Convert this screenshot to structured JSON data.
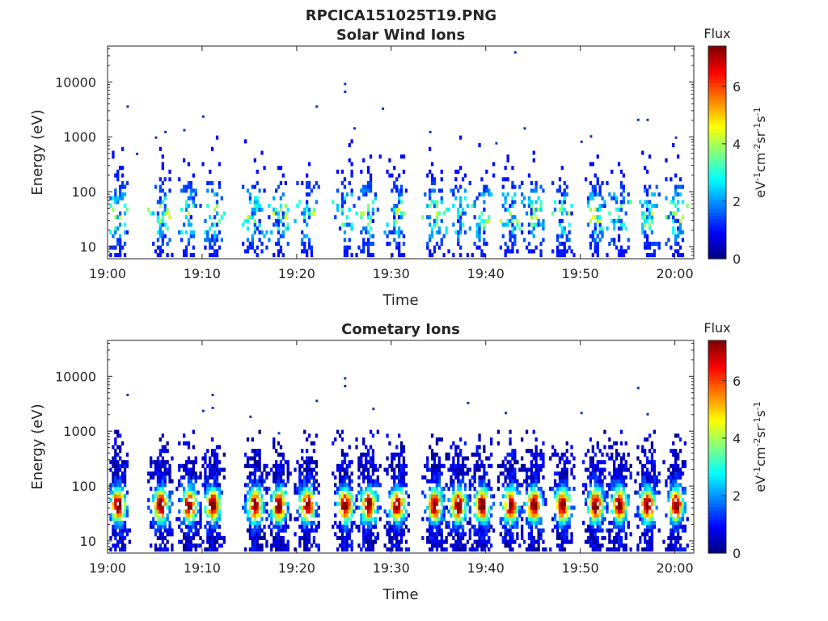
{
  "figure_title": "RPCICA151025T19.PNG",
  "colorbar": {
    "label": "Flux",
    "unit_parts": [
      "eV",
      "-1",
      "cm",
      "-2",
      "sr",
      "-1",
      "s",
      "-1"
    ],
    "ticks": [
      "0",
      "2",
      "4",
      "6"
    ],
    "range": [
      0,
      7.4
    ],
    "colormap": "jet"
  },
  "chart_data": [
    {
      "type": "heatmap",
      "title": "Solar Wind Ions",
      "xlabel": "Time",
      "ylabel": "Energy (eV)",
      "xlim": [
        "19:00",
        "20:02"
      ],
      "ylim": [
        6,
        45000
      ],
      "yscale": "log",
      "x_ticks": [
        "19:00",
        "19:10",
        "19:20",
        "19:30",
        "19:40",
        "19:50",
        "20:00"
      ],
      "y_ticks": [
        "10",
        "100",
        "1000",
        "10000"
      ],
      "bursts_minutes": [
        1,
        5.5,
        8.5,
        11,
        15.5,
        18,
        21,
        25,
        27.5,
        30.5,
        34.5,
        37,
        39.5,
        42.5,
        45,
        48,
        51.5,
        54,
        57,
        60
      ],
      "peak_flux": 4.5,
      "isolated_points": [
        [
          2,
          3500
        ],
        [
          3,
          480
        ],
        [
          5,
          950
        ],
        [
          6,
          1200
        ],
        [
          8,
          1300
        ],
        [
          10,
          2300
        ],
        [
          22,
          3500
        ],
        [
          25,
          9000
        ],
        [
          25,
          6500
        ],
        [
          26,
          1400
        ],
        [
          29,
          3200
        ],
        [
          34,
          1200
        ],
        [
          41,
          750
        ],
        [
          43,
          34000
        ],
        [
          44,
          1400
        ],
        [
          50,
          800
        ],
        [
          51,
          1000
        ],
        [
          56,
          2000
        ],
        [
          57,
          2000
        ],
        [
          60,
          950
        ]
      ]
    },
    {
      "type": "heatmap",
      "title": "Cometary Ions",
      "xlabel": "Time",
      "ylabel": "Energy (eV)",
      "xlim": [
        "19:00",
        "20:02"
      ],
      "ylim": [
        6,
        45000
      ],
      "yscale": "log",
      "x_ticks": [
        "19:00",
        "19:10",
        "19:20",
        "19:30",
        "19:40",
        "19:50",
        "20:00"
      ],
      "y_ticks": [
        "10",
        "100",
        "1000",
        "10000"
      ],
      "bursts_minutes": [
        1,
        5.5,
        8.5,
        11,
        15.5,
        18,
        21,
        25,
        27.5,
        30.5,
        34.5,
        37,
        39.5,
        42.5,
        45,
        48,
        51.5,
        54,
        57,
        60
      ],
      "peak_flux": 7.3,
      "isolated_points": [
        [
          2,
          4500
        ],
        [
          10,
          2300
        ],
        [
          11,
          4500
        ],
        [
          11,
          2600
        ],
        [
          15,
          1800
        ],
        [
          18,
          900
        ],
        [
          22,
          3500
        ],
        [
          25,
          9000
        ],
        [
          25,
          6500
        ],
        [
          28,
          2500
        ],
        [
          38,
          3200
        ],
        [
          42,
          2100
        ],
        [
          50,
          2100
        ],
        [
          56,
          6000
        ],
        [
          57,
          2000
        ]
      ]
    }
  ]
}
